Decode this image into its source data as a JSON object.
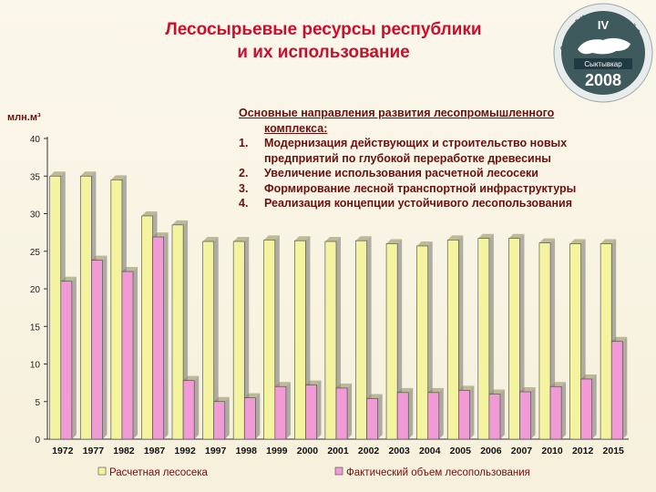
{
  "title": {
    "line1": "Лесосырьевые ресурсы республики",
    "line2": "и их использование"
  },
  "logo": {
    "top_text": "Северный Инвестиционный Форум",
    "roman": "IV",
    "city": "Сыктывкар",
    "year": "2008",
    "colors": {
      "ring": "#3f5a5c",
      "map": "#ffffff",
      "badge": "#1f3a40"
    }
  },
  "directions": {
    "heading_line1": "Основные направления развития лесопромышленного",
    "heading_line2": "комплекса:",
    "items": [
      {
        "num": "1.",
        "line1": "Модернизация действующих и строительство новых",
        "line2": "предприятий по глубокой переработке древесины"
      },
      {
        "num": "2.",
        "line1": "Увеличение использования расчетной лесосеки",
        "line2": ""
      },
      {
        "num": "3.",
        "line1": "Формирование лесной  транспортной инфраструктуры",
        "line2": ""
      },
      {
        "num": "4.",
        "line1": "Реализация концепции устойчивого лесопользования",
        "line2": ""
      }
    ]
  },
  "chart_data": {
    "type": "bar",
    "ylabel": "млн.м³",
    "ylim": [
      0,
      40
    ],
    "yticks": [
      "0",
      "5",
      "10",
      "15",
      "20",
      "25",
      "30",
      "35",
      "40"
    ],
    "categories": [
      "1972",
      "1977",
      "1982",
      "1987",
      "1992",
      "1997",
      "1998",
      "1999",
      "2000",
      "2001",
      "2002",
      "2003",
      "2004",
      "2005",
      "2006",
      "2007",
      "2010",
      "2012",
      "2015"
    ],
    "series": [
      {
        "name": "Расчетная лесосека",
        "color": "#f4f4a0",
        "values": [
          35.0,
          35.0,
          34.5,
          29.7,
          28.5,
          26.3,
          26.3,
          26.5,
          26.4,
          26.3,
          26.4,
          26.0,
          25.7,
          26.5,
          26.7,
          26.7,
          26.1,
          26.0,
          26.0
        ]
      },
      {
        "name": "Фактический объем лесопользования",
        "color": "#f09ad6",
        "values": [
          21.0,
          23.8,
          22.3,
          26.9,
          7.8,
          5.0,
          5.5,
          7.0,
          7.2,
          6.8,
          5.4,
          6.2,
          6.2,
          6.5,
          6.0,
          6.3,
          7.0,
          8.0,
          13.0
        ]
      }
    ],
    "legend": "bottom",
    "grid": false
  }
}
